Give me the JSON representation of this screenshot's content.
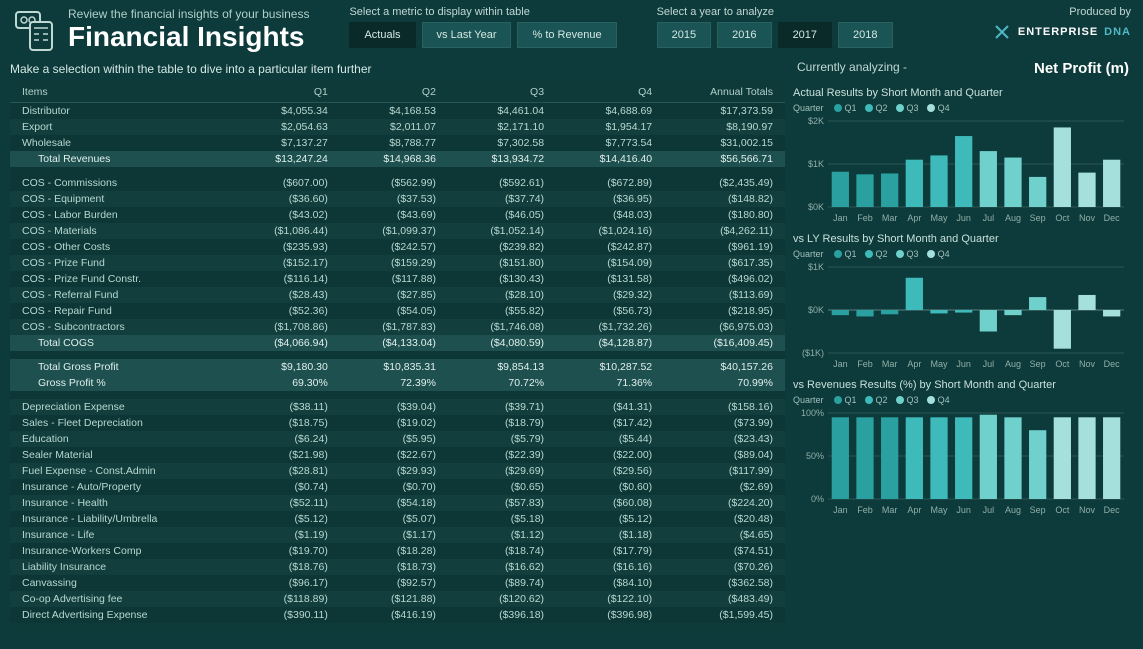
{
  "header": {
    "subtitle": "Review the financial insights of your business",
    "title": "Financial Insights",
    "metric_label": "Select a metric to display within table",
    "metrics": [
      "Actuals",
      "vs Last Year",
      "% to Revenue"
    ],
    "metric_active": 0,
    "year_label": "Select a year to analyze",
    "years": [
      "2015",
      "2016",
      "2017",
      "2018"
    ],
    "year_active": 2,
    "produced_label": "Produced by",
    "brand_a": "ENTERPRISE",
    "brand_b": "DNA"
  },
  "instruction": "Make a selection within the table to dive into a particular item further",
  "analyzing": {
    "label": "Currently analyzing -",
    "value": "Net Profit (m)"
  },
  "table": {
    "columns": [
      "Items",
      "Q1",
      "Q2",
      "Q3",
      "Q4",
      "Annual Totals"
    ],
    "rows": [
      {
        "t": "d",
        "c": [
          "Distributor",
          "$4,055.34",
          "$4,168.53",
          "$4,461.04",
          "$4,688.69",
          "$17,373.59"
        ]
      },
      {
        "t": "d",
        "c": [
          "Export",
          "$2,054.63",
          "$2,011.07",
          "$2,171.10",
          "$1,954.17",
          "$8,190.97"
        ]
      },
      {
        "t": "d",
        "c": [
          "Wholesale",
          "$7,137.27",
          "$8,788.77",
          "$7,302.58",
          "$7,773.54",
          "$31,002.15"
        ]
      },
      {
        "t": "t",
        "c": [
          "Total Revenues",
          "$13,247.24",
          "$14,968.36",
          "$13,934.72",
          "$14,416.40",
          "$56,566.71"
        ]
      },
      {
        "t": "b"
      },
      {
        "t": "d",
        "c": [
          "COS - Commissions",
          "($607.00)",
          "($562.99)",
          "($592.61)",
          "($672.89)",
          "($2,435.49)"
        ]
      },
      {
        "t": "d",
        "c": [
          "COS - Equipment",
          "($36.60)",
          "($37.53)",
          "($37.74)",
          "($36.95)",
          "($148.82)"
        ]
      },
      {
        "t": "d",
        "c": [
          "COS - Labor Burden",
          "($43.02)",
          "($43.69)",
          "($46.05)",
          "($48.03)",
          "($180.80)"
        ]
      },
      {
        "t": "d",
        "c": [
          "COS - Materials",
          "($1,086.44)",
          "($1,099.37)",
          "($1,052.14)",
          "($1,024.16)",
          "($4,262.11)"
        ]
      },
      {
        "t": "d",
        "c": [
          "COS - Other Costs",
          "($235.93)",
          "($242.57)",
          "($239.82)",
          "($242.87)",
          "($961.19)"
        ]
      },
      {
        "t": "d",
        "c": [
          "COS - Prize Fund",
          "($152.17)",
          "($159.29)",
          "($151.80)",
          "($154.09)",
          "($617.35)"
        ]
      },
      {
        "t": "d",
        "c": [
          "COS - Prize Fund Constr.",
          "($116.14)",
          "($117.88)",
          "($130.43)",
          "($131.58)",
          "($496.02)"
        ]
      },
      {
        "t": "d",
        "c": [
          "COS - Referral Fund",
          "($28.43)",
          "($27.85)",
          "($28.10)",
          "($29.32)",
          "($113.69)"
        ]
      },
      {
        "t": "d",
        "c": [
          "COS - Repair Fund",
          "($52.36)",
          "($54.05)",
          "($55.82)",
          "($56.73)",
          "($218.95)"
        ]
      },
      {
        "t": "d",
        "c": [
          "COS - Subcontractors",
          "($1,708.86)",
          "($1,787.83)",
          "($1,746.08)",
          "($1,732.26)",
          "($6,975.03)"
        ]
      },
      {
        "t": "t",
        "c": [
          "Total COGS",
          "($4,066.94)",
          "($4,133.04)",
          "($4,080.59)",
          "($4,128.87)",
          "($16,409.45)"
        ]
      },
      {
        "t": "b"
      },
      {
        "t": "t",
        "c": [
          "Total Gross Profit",
          "$9,180.30",
          "$10,835.31",
          "$9,854.13",
          "$10,287.52",
          "$40,157.26"
        ]
      },
      {
        "t": "t",
        "c": [
          "Gross Profit %",
          "69.30%",
          "72.39%",
          "70.72%",
          "71.36%",
          "70.99%"
        ]
      },
      {
        "t": "b"
      },
      {
        "t": "d",
        "c": [
          "Depreciation Expense",
          "($38.11)",
          "($39.04)",
          "($39.71)",
          "($41.31)",
          "($158.16)"
        ]
      },
      {
        "t": "d",
        "c": [
          "Sales - Fleet Depreciation",
          "($18.75)",
          "($19.02)",
          "($18.79)",
          "($17.42)",
          "($73.99)"
        ]
      },
      {
        "t": "d",
        "c": [
          "Education",
          "($6.24)",
          "($5.95)",
          "($5.79)",
          "($5.44)",
          "($23.43)"
        ]
      },
      {
        "t": "d",
        "c": [
          "Sealer Material",
          "($21.98)",
          "($22.67)",
          "($22.39)",
          "($22.00)",
          "($89.04)"
        ]
      },
      {
        "t": "d",
        "c": [
          "Fuel Expense - Const.Admin",
          "($28.81)",
          "($29.93)",
          "($29.69)",
          "($29.56)",
          "($117.99)"
        ]
      },
      {
        "t": "d",
        "c": [
          "Insurance - Auto/Property",
          "($0.74)",
          "($0.70)",
          "($0.65)",
          "($0.60)",
          "($2.69)"
        ]
      },
      {
        "t": "d",
        "c": [
          "Insurance - Health",
          "($52.11)",
          "($54.18)",
          "($57.83)",
          "($60.08)",
          "($224.20)"
        ]
      },
      {
        "t": "d",
        "c": [
          "Insurance - Liability/Umbrella",
          "($5.12)",
          "($5.07)",
          "($5.18)",
          "($5.12)",
          "($20.48)"
        ]
      },
      {
        "t": "d",
        "c": [
          "Insurance - Life",
          "($1.19)",
          "($1.17)",
          "($1.12)",
          "($1.18)",
          "($4.65)"
        ]
      },
      {
        "t": "d",
        "c": [
          "Insurance-Workers Comp",
          "($19.70)",
          "($18.28)",
          "($18.74)",
          "($17.79)",
          "($74.51)"
        ]
      },
      {
        "t": "d",
        "c": [
          "Liability Insurance",
          "($18.76)",
          "($18.73)",
          "($16.62)",
          "($16.16)",
          "($70.26)"
        ]
      },
      {
        "t": "d",
        "c": [
          "Canvassing",
          "($96.17)",
          "($92.57)",
          "($89.74)",
          "($84.10)",
          "($362.58)"
        ]
      },
      {
        "t": "d",
        "c": [
          "Co-op Advertising fee",
          "($118.89)",
          "($121.88)",
          "($120.62)",
          "($122.10)",
          "($483.49)"
        ]
      },
      {
        "t": "d",
        "c": [
          "Direct Advertising Expense",
          "($390.11)",
          "($416.19)",
          "($396.18)",
          "($396.98)",
          "($1,599.45)"
        ]
      }
    ]
  },
  "charts": {
    "quarter_label": "Quarter",
    "legend": [
      "Q1",
      "Q2",
      "Q3",
      "Q4"
    ],
    "colors": [
      "#2aa0a0",
      "#3fbaba",
      "#6fd0cc",
      "#a5e0dc"
    ],
    "months": [
      "Jan",
      "Feb",
      "Mar",
      "Apr",
      "May",
      "Jun",
      "Jul",
      "Aug",
      "Sep",
      "Oct",
      "Nov",
      "Dec"
    ],
    "axis_color": "#2a5555",
    "text_color": "#90b0aa",
    "actual": {
      "title": "Actual Results by Short Month and Quarter",
      "ylabels": [
        "$0K",
        "$1K",
        "$2K"
      ],
      "ylim": [
        0,
        2000
      ],
      "values": [
        820,
        760,
        780,
        1100,
        1200,
        1650,
        1300,
        1150,
        700,
        1850,
        800,
        1100
      ],
      "quarters": [
        0,
        0,
        0,
        1,
        1,
        1,
        2,
        2,
        2,
        3,
        3,
        3
      ]
    },
    "vsly": {
      "title": "vs LY Results by Short Month and Quarter",
      "ylabels": [
        "($1K)",
        "$0K",
        "$1K"
      ],
      "ylim": [
        -1000,
        1000
      ],
      "values": [
        -120,
        -150,
        -100,
        750,
        -80,
        -60,
        -500,
        -120,
        300,
        -900,
        350,
        -150
      ],
      "quarters": [
        0,
        0,
        0,
        1,
        1,
        1,
        2,
        2,
        2,
        3,
        3,
        3
      ]
    },
    "vsrev": {
      "title": "vs Revenues Results (%) by Short Month and Quarter",
      "ylabels": [
        "0%",
        "50%",
        "100%"
      ],
      "ylim": [
        0,
        100
      ],
      "values": [
        95,
        95,
        95,
        95,
        95,
        95,
        98,
        95,
        80,
        95,
        95,
        95
      ],
      "quarters": [
        0,
        0,
        0,
        1,
        1,
        1,
        2,
        2,
        2,
        3,
        3,
        3
      ]
    }
  }
}
